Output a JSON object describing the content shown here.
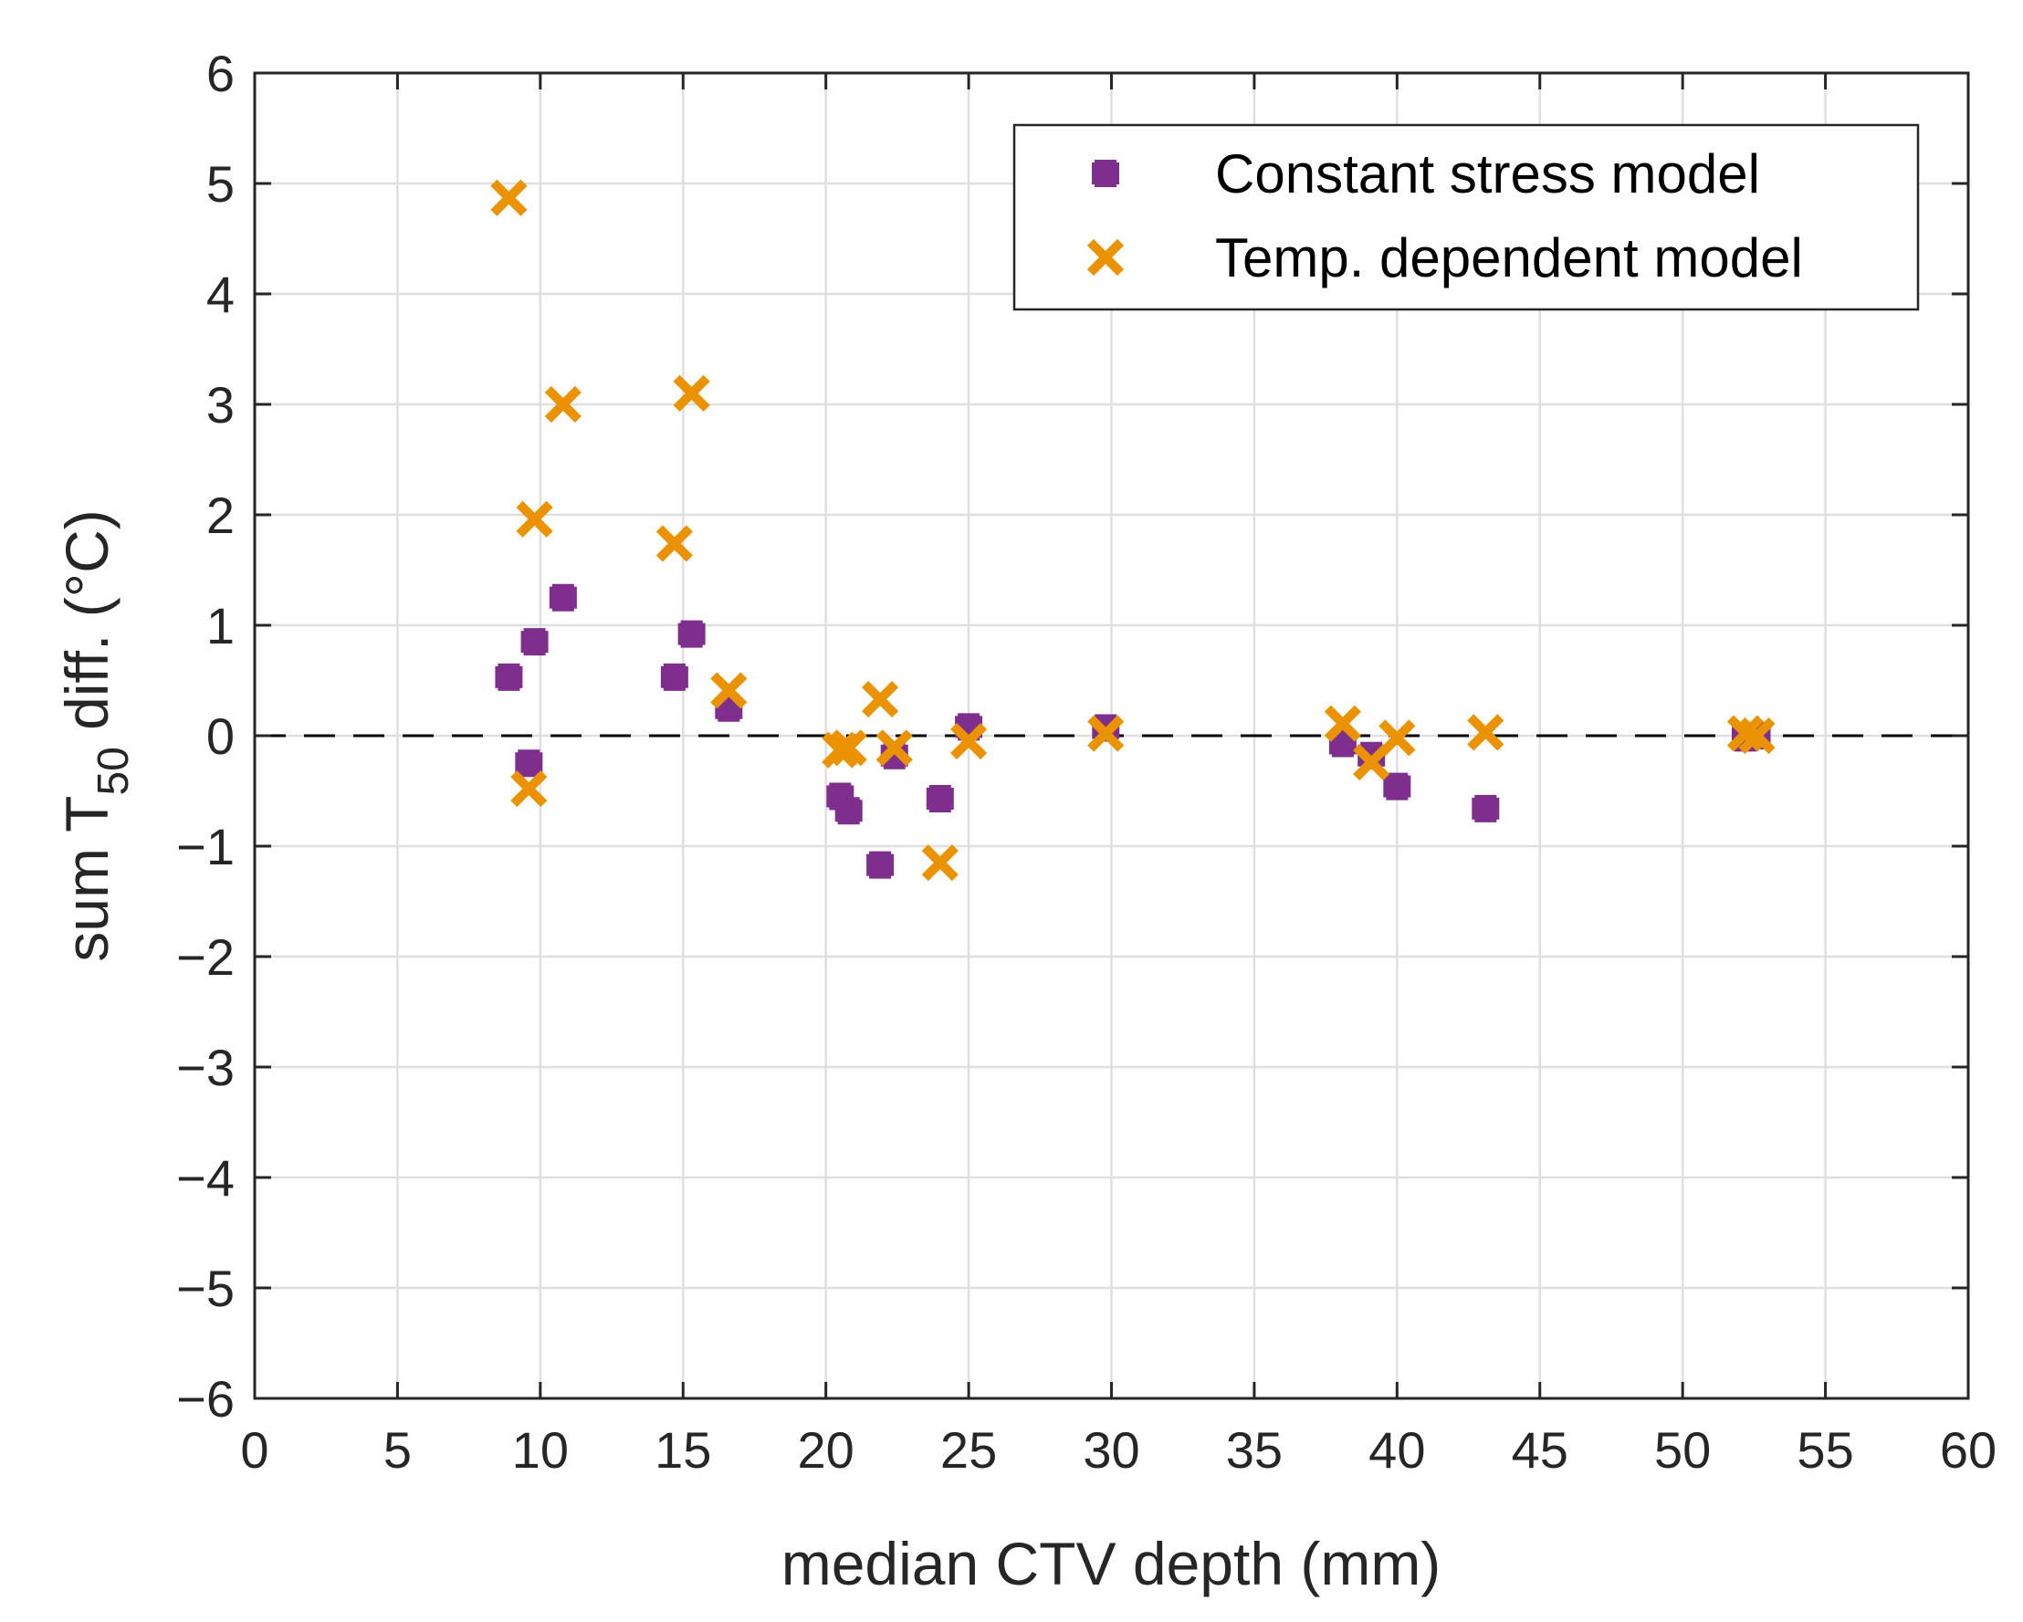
{
  "chart_data": {
    "type": "scatter",
    "xlabel": "median CTV depth (mm)",
    "ylabel": {
      "prefix": "sum T",
      "subscript": "50",
      "suffix": " diff. (°C)"
    },
    "xlim": [
      0,
      60
    ],
    "ylim": [
      -6,
      6
    ],
    "xticks": [
      0,
      5,
      10,
      15,
      20,
      25,
      30,
      35,
      40,
      45,
      50,
      55,
      60
    ],
    "yticks": [
      -6,
      -5,
      -4,
      -3,
      -2,
      -1,
      0,
      1,
      2,
      3,
      4,
      5,
      6
    ],
    "xtick_labels": [
      "0",
      "5",
      "10",
      "15",
      "20",
      "25",
      "30",
      "35",
      "40",
      "45",
      "50",
      "55",
      "60"
    ],
    "ytick_labels": [
      "−6",
      "−5",
      "−4",
      "−3",
      "−2",
      "−1",
      "0",
      "1",
      "2",
      "3",
      "4",
      "5",
      "6"
    ],
    "grid": true,
    "reference_line": {
      "y": 0,
      "style": "dashed",
      "color": "#000000"
    },
    "legend": {
      "position": "top-right"
    },
    "series": [
      {
        "name": "Constant stress model",
        "marker": "plus",
        "color": "#7E2F8E",
        "points": [
          {
            "x": 8.9,
            "y": 0.53
          },
          {
            "x": 9.6,
            "y": -0.25
          },
          {
            "x": 9.8,
            "y": 0.85
          },
          {
            "x": 10.8,
            "y": 1.25
          },
          {
            "x": 14.7,
            "y": 0.53
          },
          {
            "x": 15.3,
            "y": 0.92
          },
          {
            "x": 16.6,
            "y": 0.25
          },
          {
            "x": 20.5,
            "y": -0.55
          },
          {
            "x": 20.8,
            "y": -0.68
          },
          {
            "x": 21.9,
            "y": -1.17
          },
          {
            "x": 22.4,
            "y": -0.18
          },
          {
            "x": 24.0,
            "y": -0.57
          },
          {
            "x": 25.0,
            "y": 0.08
          },
          {
            "x": 29.8,
            "y": 0.07
          },
          {
            "x": 38.1,
            "y": -0.07
          },
          {
            "x": 39.1,
            "y": -0.18
          },
          {
            "x": 40.0,
            "y": -0.46
          },
          {
            "x": 43.1,
            "y": -0.66
          },
          {
            "x": 52.2,
            "y": -0.02
          },
          {
            "x": 52.6,
            "y": 0.0
          }
        ]
      },
      {
        "name": "Temp. dependent model",
        "marker": "x",
        "color": "#EB9200",
        "points": [
          {
            "x": 8.9,
            "y": 4.87
          },
          {
            "x": 9.6,
            "y": -0.48
          },
          {
            "x": 9.8,
            "y": 1.96
          },
          {
            "x": 10.8,
            "y": 3.0
          },
          {
            "x": 14.7,
            "y": 1.74
          },
          {
            "x": 15.3,
            "y": 3.1
          },
          {
            "x": 16.6,
            "y": 0.41
          },
          {
            "x": 20.5,
            "y": -0.13
          },
          {
            "x": 20.8,
            "y": -0.11
          },
          {
            "x": 21.9,
            "y": 0.33
          },
          {
            "x": 22.4,
            "y": -0.11
          },
          {
            "x": 24.0,
            "y": -1.15
          },
          {
            "x": 25.0,
            "y": -0.05
          },
          {
            "x": 29.8,
            "y": 0.02
          },
          {
            "x": 38.1,
            "y": 0.11
          },
          {
            "x": 39.1,
            "y": -0.24
          },
          {
            "x": 40.0,
            "y": -0.02
          },
          {
            "x": 43.1,
            "y": 0.03
          },
          {
            "x": 52.2,
            "y": 0.02
          },
          {
            "x": 52.6,
            "y": 0.0
          }
        ]
      }
    ]
  }
}
